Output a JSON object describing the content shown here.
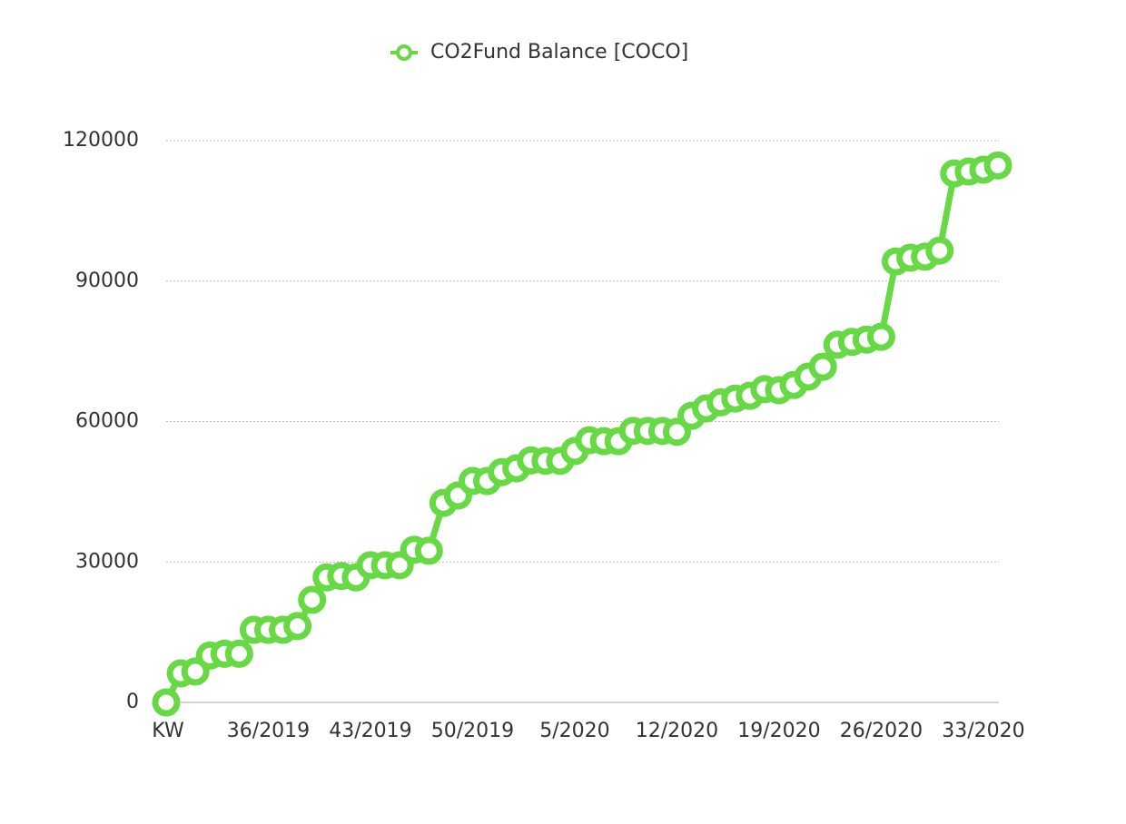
{
  "chart_data": {
    "type": "line",
    "categories": [
      "KW",
      null,
      null,
      null,
      null,
      null,
      null,
      "36/2019",
      null,
      null,
      null,
      null,
      null,
      null,
      "43/2019",
      null,
      null,
      null,
      null,
      null,
      null,
      "50/2019",
      null,
      null,
      null,
      null,
      null,
      null,
      "5/2020",
      null,
      null,
      null,
      null,
      null,
      null,
      "12/2020",
      null,
      null,
      null,
      null,
      null,
      null,
      "19/2020",
      null,
      null,
      null,
      null,
      null,
      null,
      "26/2020",
      null,
      null,
      null,
      null,
      null,
      null,
      "33/2020",
      null
    ],
    "series": [
      {
        "name": "CO2Fund Balance [COCO]",
        "color": "#66d944",
        "values": [
          0,
          6200,
          6600,
          10000,
          10400,
          10400,
          15500,
          15500,
          15500,
          16300,
          21900,
          26700,
          27000,
          26700,
          29300,
          29300,
          29300,
          32600,
          32400,
          42600,
          44200,
          47300,
          47300,
          49200,
          50000,
          51700,
          51600,
          51600,
          53700,
          56000,
          55800,
          55800,
          58000,
          58000,
          58000,
          57800,
          61200,
          62800,
          64100,
          64900,
          65500,
          66900,
          66700,
          67800,
          69600,
          71700,
          76400,
          77000,
          77500,
          78100,
          94200,
          95000,
          95200,
          96500,
          113000,
          113400,
          113800,
          114700
        ]
      }
    ],
    "ylim": [
      0,
      120000
    ],
    "yticks": [
      0,
      30000,
      60000,
      90000,
      120000
    ],
    "grid": true,
    "legend": "top"
  }
}
